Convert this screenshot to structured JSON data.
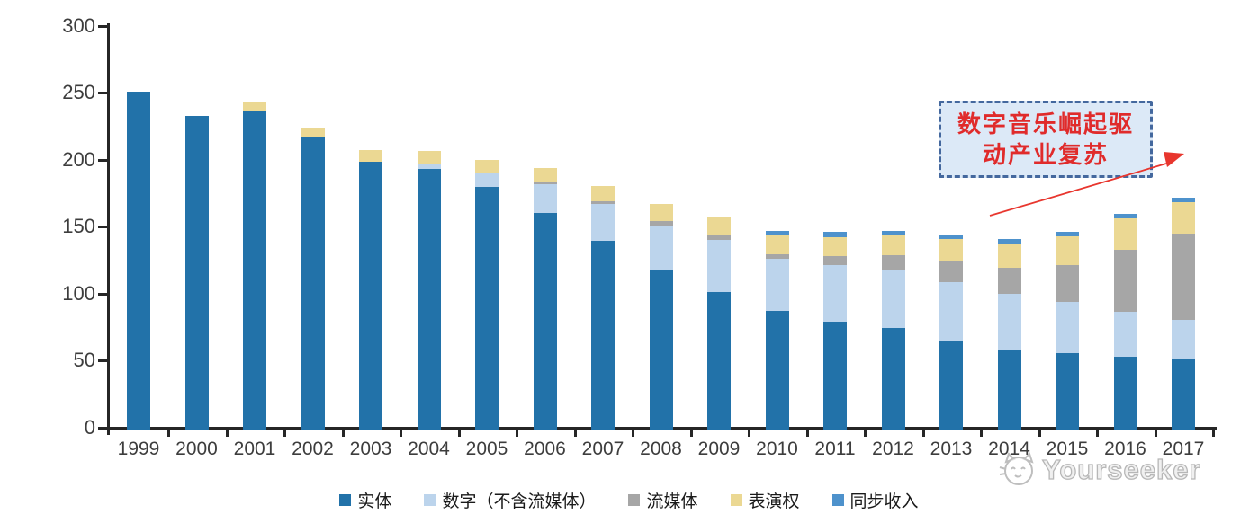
{
  "chart_data": {
    "type": "bar",
    "stacked": true,
    "categories": [
      "1999",
      "2000",
      "2001",
      "2002",
      "2003",
      "2004",
      "2005",
      "2006",
      "2007",
      "2008",
      "2009",
      "2010",
      "2011",
      "2012",
      "2013",
      "2014",
      "2015",
      "2016",
      "2017"
    ],
    "series": [
      {
        "name": "实体",
        "color": "#2272A9",
        "values": [
          252,
          234,
          238,
          219,
          200,
          194.5,
          181,
          162,
          141,
          118.5,
          102.5,
          88.5,
          80.5,
          75.5,
          66.5,
          60,
          57,
          54.5,
          52
        ]
      },
      {
        "name": "数字（不含流媒体）",
        "color": "#BCD4EC",
        "values": [
          0,
          0,
          0,
          0,
          0,
          4,
          11,
          21,
          27.5,
          33.5,
          39,
          39,
          42.5,
          43.5,
          43.5,
          41,
          38,
          33.5,
          30
        ]
      },
      {
        "name": "流媒体",
        "color": "#A6A6A6",
        "values": [
          0,
          0,
          0,
          0,
          0,
          0,
          0,
          2,
          2,
          3.5,
          3.5,
          3.5,
          6.5,
          11,
          16,
          19.5,
          28,
          46.5,
          64
        ]
      },
      {
        "name": "表演权",
        "color": "#EBD893",
        "values": [
          0,
          0,
          6,
          6.5,
          8.5,
          9.5,
          9,
          10,
          11,
          13,
          13.5,
          14,
          14,
          15,
          16.5,
          18,
          21,
          23,
          23.5
        ]
      },
      {
        "name": "同步收入",
        "color": "#4E92CC",
        "values": [
          0,
          0,
          0,
          0,
          0,
          0,
          0,
          0,
          0,
          0,
          0,
          3.5,
          4,
          3.5,
          3,
          3.5,
          3.5,
          3.5,
          3.5
        ]
      }
    ],
    "ylim": [
      0,
      300
    ],
    "yticks": [
      0,
      50,
      100,
      150,
      200,
      250,
      300
    ],
    "grid": false,
    "legend_position": "bottom"
  },
  "annotation": {
    "line1": "数字音乐崛起驱",
    "line2": "动产业复苏",
    "text_color": "#E02B2B",
    "box_background": "#DCE9F7",
    "box_border_color": "#44689E",
    "arrow_color": "#E8362E"
  },
  "watermark": {
    "text": "Yourseeker"
  }
}
